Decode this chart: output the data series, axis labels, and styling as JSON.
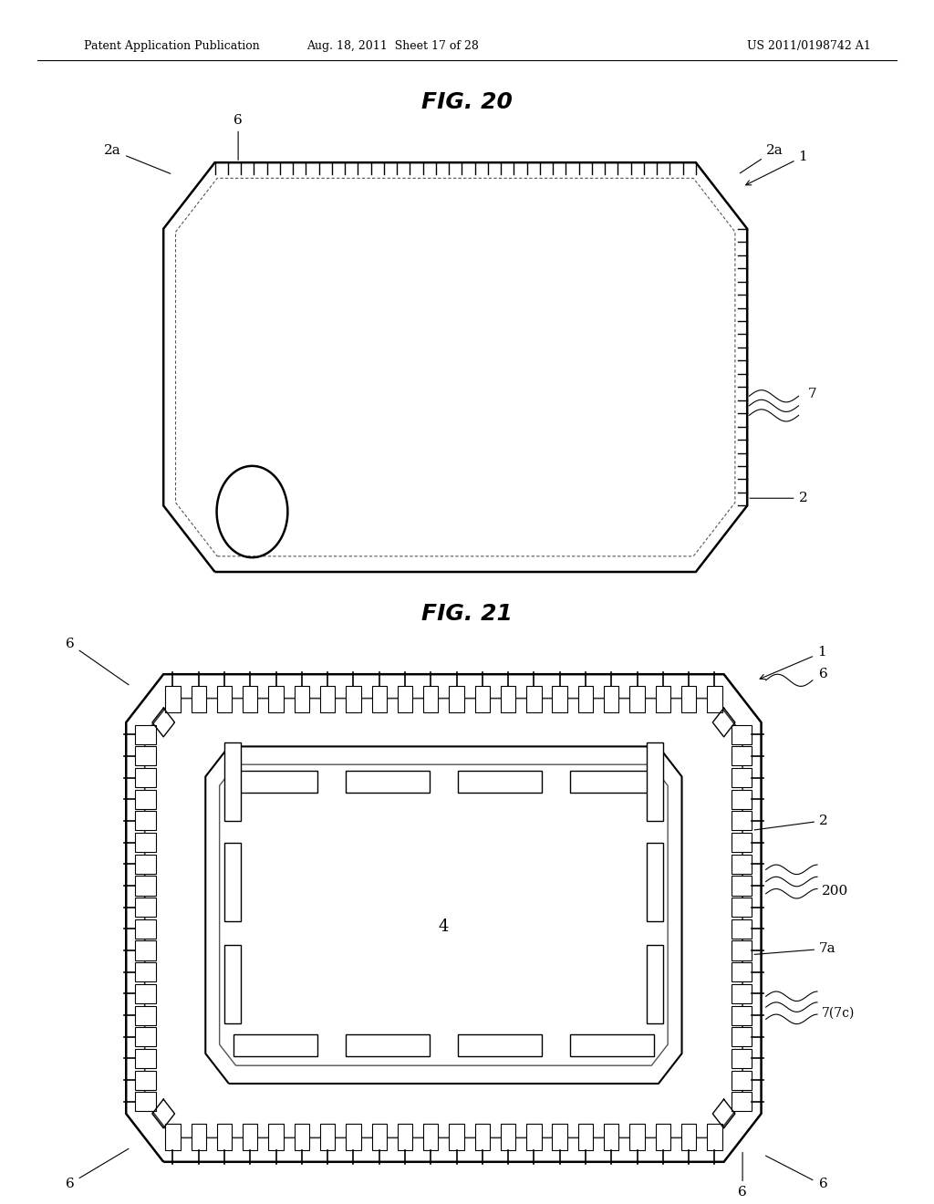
{
  "background_color": "#ffffff",
  "header_left": "Patent Application Publication",
  "header_mid": "Aug. 18, 2011  Sheet 17 of 28",
  "header_right": "US 2011/0198742 A1",
  "fig20_title": "FIG. 20",
  "fig21_title": "FIG. 21",
  "line_color": "#000000"
}
